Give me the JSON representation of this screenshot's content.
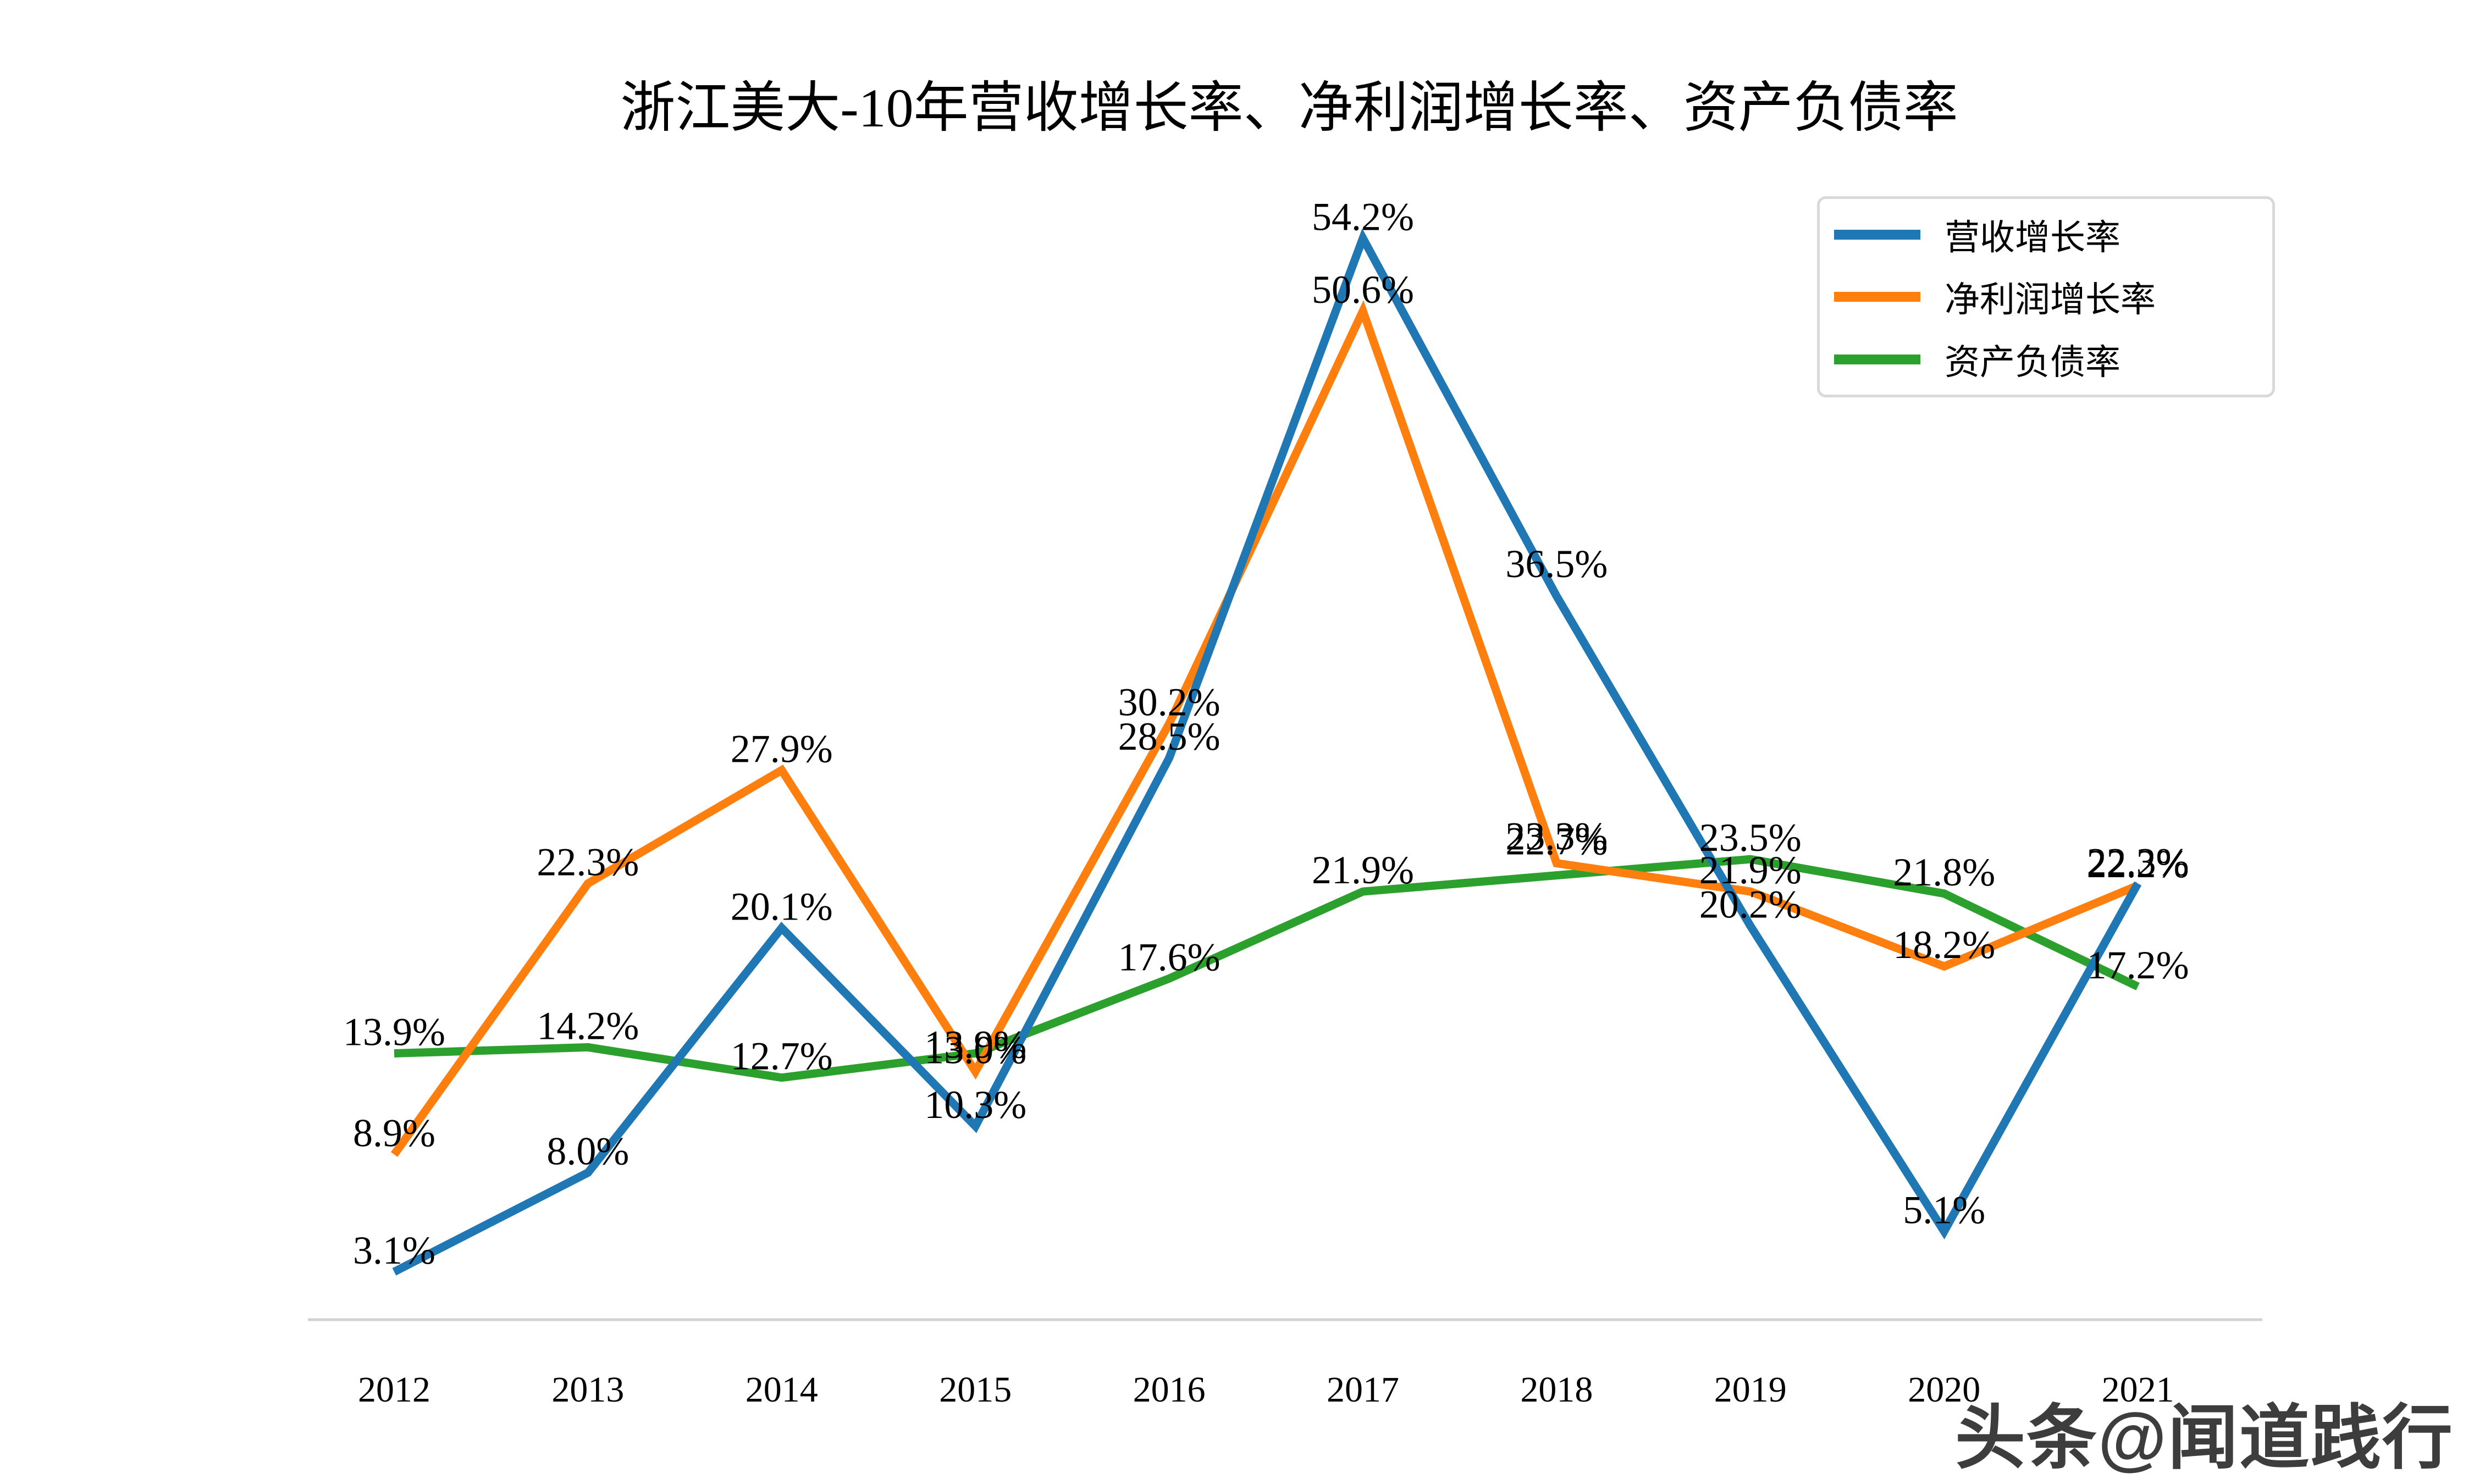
{
  "title": {
    "text": "浙江美大-10年营收增长率、净利润增长率、资产负债率"
  },
  "watermark": {
    "text": "头条@闻道践行"
  },
  "chart_data": {
    "type": "line",
    "title": "浙江美大-10年营收增长率、净利润增长率、资产负债率",
    "categories": [
      "2012",
      "2013",
      "2014",
      "2015",
      "2016",
      "2017",
      "2018",
      "2019",
      "2020",
      "2021"
    ],
    "series": [
      {
        "name": "营收增长率",
        "color": "#1f77b4",
        "values": [
          3.1,
          8.0,
          20.1,
          10.3,
          28.5,
          54.2,
          36.5,
          20.2,
          5.1,
          22.3
        ]
      },
      {
        "name": "净利润增长率",
        "color": "#ff7f0e",
        "values": [
          8.9,
          22.3,
          27.9,
          13.0,
          30.2,
          50.6,
          23.3,
          21.9,
          18.2,
          22.2
        ]
      },
      {
        "name": "资产负债率",
        "color": "#2ca02c",
        "values": [
          13.9,
          14.2,
          12.7,
          13.9,
          17.6,
          21.9,
          22.7,
          23.5,
          21.8,
          17.2
        ]
      }
    ],
    "ylim": [
      0,
      57
    ],
    "grid": false,
    "y_axis_visible": false,
    "legend_position": "upper right",
    "label_format": "{value}%",
    "label_offsets": {
      "0-6": -35,
      "1-6": -25,
      "2-6": -38,
      "2-3": 8
    },
    "axis_color": "#d2d2d2",
    "text_color": "#000000",
    "background_color": "#ffffff"
  }
}
